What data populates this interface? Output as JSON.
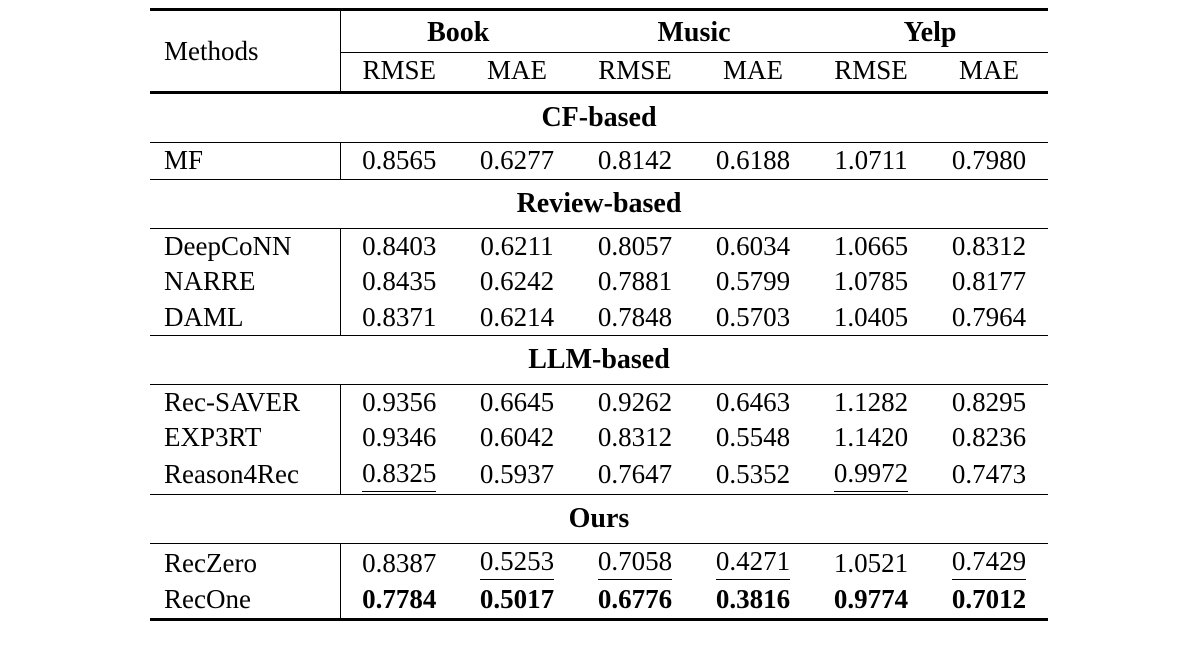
{
  "page": {
    "background": "#ffffff",
    "text_color": "#000000"
  },
  "table": {
    "methods_label": "Methods",
    "groups": [
      "Book",
      "Music",
      "Yelp"
    ],
    "metrics": [
      "RMSE",
      "MAE",
      "RMSE",
      "MAE",
      "RMSE",
      "MAE"
    ],
    "sections": [
      {
        "title": "CF-based",
        "rows": [
          {
            "method": "MF",
            "cells": [
              {
                "v": "0.8565"
              },
              {
                "v": "0.6277"
              },
              {
                "v": "0.8142"
              },
              {
                "v": "0.6188"
              },
              {
                "v": "1.0711"
              },
              {
                "v": "0.7980"
              }
            ]
          }
        ]
      },
      {
        "title": "Review-based",
        "rows": [
          {
            "method": "DeepCoNN",
            "cells": [
              {
                "v": "0.8403"
              },
              {
                "v": "0.6211"
              },
              {
                "v": "0.8057"
              },
              {
                "v": "0.6034"
              },
              {
                "v": "1.0665"
              },
              {
                "v": "0.8312"
              }
            ]
          },
          {
            "method": "NARRE",
            "cells": [
              {
                "v": "0.8435"
              },
              {
                "v": "0.6242"
              },
              {
                "v": "0.7881"
              },
              {
                "v": "0.5799"
              },
              {
                "v": "1.0785"
              },
              {
                "v": "0.8177"
              }
            ]
          },
          {
            "method": "DAML",
            "cells": [
              {
                "v": "0.8371"
              },
              {
                "v": "0.6214"
              },
              {
                "v": "0.7848"
              },
              {
                "v": "0.5703"
              },
              {
                "v": "1.0405"
              },
              {
                "v": "0.7964"
              }
            ]
          }
        ]
      },
      {
        "title": "LLM-based",
        "rows": [
          {
            "method": "Rec-SAVER",
            "cells": [
              {
                "v": "0.9356"
              },
              {
                "v": "0.6645"
              },
              {
                "v": "0.9262"
              },
              {
                "v": "0.6463"
              },
              {
                "v": "1.1282"
              },
              {
                "v": "0.8295"
              }
            ]
          },
          {
            "method": "EXP3RT",
            "cells": [
              {
                "v": "0.9346"
              },
              {
                "v": "0.6042"
              },
              {
                "v": "0.8312"
              },
              {
                "v": "0.5548"
              },
              {
                "v": "1.1420"
              },
              {
                "v": "0.8236"
              }
            ]
          },
          {
            "method": "Reason4Rec",
            "cells": [
              {
                "v": "0.8325",
                "u": true
              },
              {
                "v": "0.5937"
              },
              {
                "v": "0.7647"
              },
              {
                "v": "0.5352"
              },
              {
                "v": "0.9972",
                "u": true
              },
              {
                "v": "0.7473"
              }
            ]
          }
        ]
      },
      {
        "title": "Ours",
        "rows": [
          {
            "method": "RecZero",
            "cells": [
              {
                "v": "0.8387"
              },
              {
                "v": "0.5253",
                "u": true
              },
              {
                "v": "0.7058",
                "u": true
              },
              {
                "v": "0.4271",
                "u": true
              },
              {
                "v": "1.0521"
              },
              {
                "v": "0.7429",
                "u": true
              }
            ]
          },
          {
            "method": "RecOne",
            "cells": [
              {
                "v": "0.7784",
                "b": true
              },
              {
                "v": "0.5017",
                "b": true
              },
              {
                "v": "0.6776",
                "b": true
              },
              {
                "v": "0.3816",
                "b": true
              },
              {
                "v": "0.9774",
                "b": true
              },
              {
                "v": "0.7012",
                "b": true
              }
            ]
          }
        ]
      }
    ]
  }
}
